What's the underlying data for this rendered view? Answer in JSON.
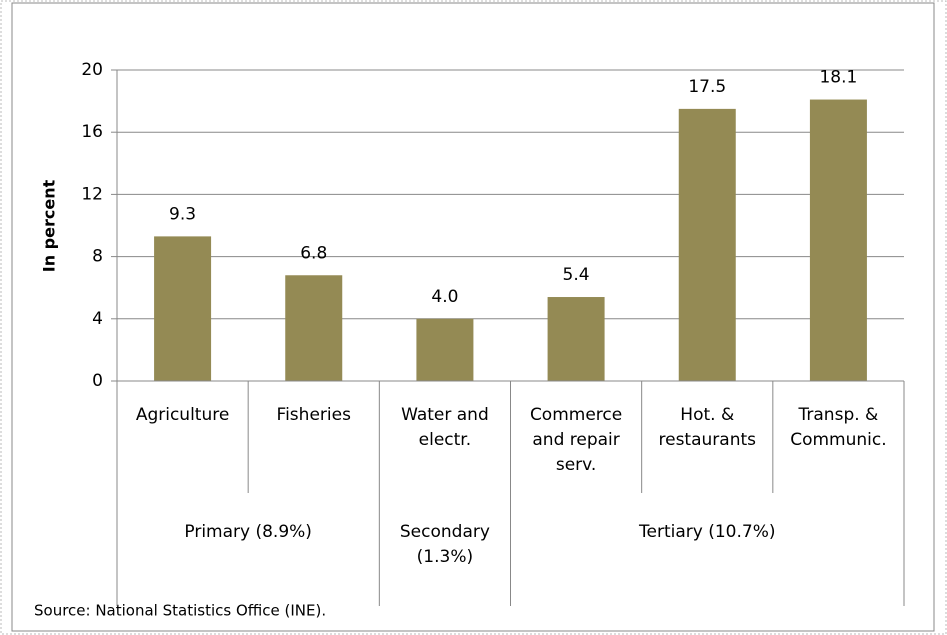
{
  "chart_data": {
    "type": "bar",
    "y_label": "In percent",
    "categories": [
      "Agriculture",
      "Fisheries",
      "Water and\nelectr.",
      "Commerce\nand repair\nserv.",
      "Hot. &\nrestaurants",
      "Transp. &\nCommunic."
    ],
    "values": [
      9.3,
      6.8,
      4.0,
      5.4,
      17.5,
      18.1
    ],
    "value_labels": [
      "9.3",
      "6.8",
      "4.0",
      "5.4",
      "17.5",
      "18.1"
    ],
    "groups": [
      {
        "label": "Primary (8.9%)",
        "span": 2
      },
      {
        "label": "Secondary\n(1.3%)",
        "span": 1
      },
      {
        "label": "Tertiary (10.7%)",
        "span": 3
      }
    ],
    "color": "#948a54",
    "ylim": [
      0,
      20
    ],
    "yticks": [
      0,
      4,
      8,
      12,
      16,
      20
    ],
    "grid": true,
    "source": "Source: National Statistics Office (INE)."
  }
}
